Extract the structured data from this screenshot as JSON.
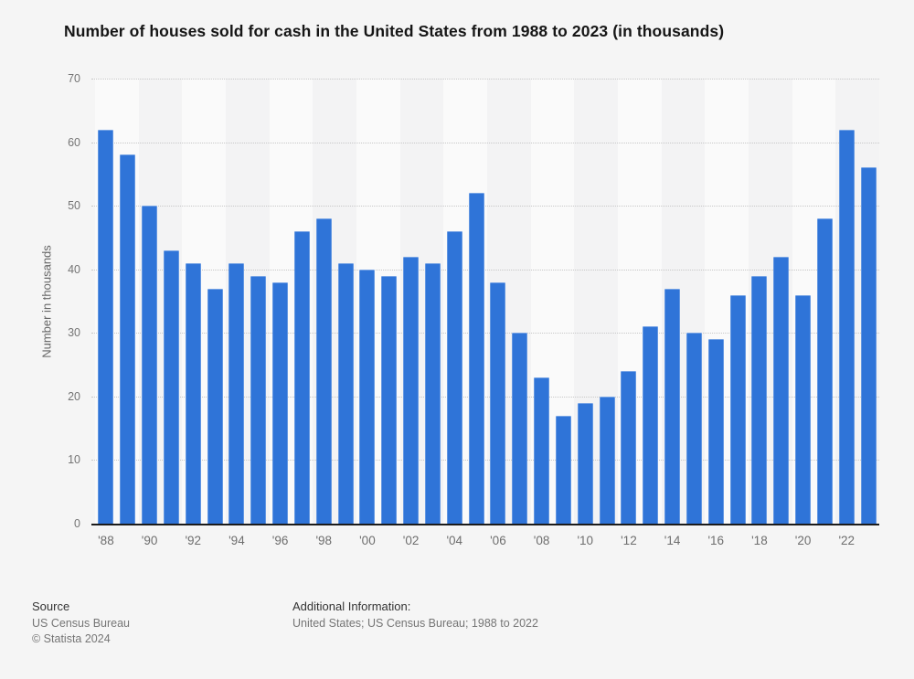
{
  "title": "Number of houses sold for cash in the United States from 1988 to 2023 (in thousands)",
  "chart_data": {
    "type": "bar",
    "title": "Number of houses sold for cash in the United States from 1988 to 2023 (in thousands)",
    "x": [
      1988,
      1989,
      1990,
      1991,
      1992,
      1993,
      1994,
      1995,
      1996,
      1997,
      1998,
      1999,
      2000,
      2001,
      2002,
      2003,
      2004,
      2005,
      2006,
      2007,
      2008,
      2009,
      2010,
      2011,
      2012,
      2013,
      2014,
      2015,
      2016,
      2017,
      2018,
      2019,
      2020,
      2021,
      2022,
      2023
    ],
    "values": [
      62,
      58,
      50,
      43,
      41,
      37,
      41,
      39,
      38,
      46,
      48,
      41,
      40,
      39,
      42,
      41,
      46,
      52,
      38,
      30,
      23,
      17,
      19,
      20,
      24,
      31,
      37,
      30,
      29,
      36,
      39,
      42,
      36,
      48,
      62,
      56
    ],
    "xlabel": "",
    "ylabel": "Number in thousands",
    "ylim": [
      0,
      70
    ],
    "yticks": [
      0,
      10,
      20,
      30,
      40,
      50,
      60,
      70
    ],
    "xtick_labels": [
      "'88",
      "'90",
      "'92",
      "'94",
      "'96",
      "'98",
      "'00",
      "'02",
      "'04",
      "'06",
      "'08",
      "'10",
      "'12",
      "'14",
      "'16",
      "'18",
      "'20",
      "'22"
    ],
    "grid": true,
    "legend": false,
    "bar_color": "#2f74d8",
    "stripe_light": "#fafafa",
    "stripe_dark": "#f3f3f4"
  },
  "footer": {
    "source_label": "Source",
    "source_lines": [
      "US Census Bureau",
      "© Statista 2024"
    ],
    "additional_label": "Additional Information:",
    "additional_text": "United States; US Census Bureau; 1988 to 2022"
  }
}
